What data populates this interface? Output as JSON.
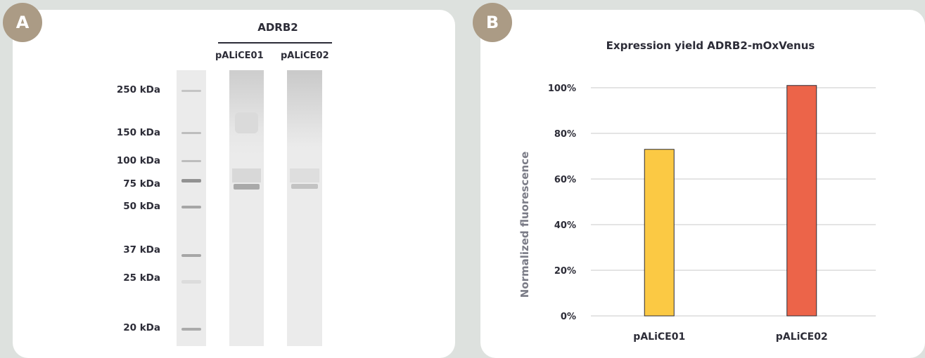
{
  "panels": {
    "a": {
      "badge": "A",
      "gel_title": "ADRB2",
      "lanes": [
        "pALiCE01",
        "pALiCE02"
      ],
      "markers": [
        "250 kDa",
        "150 kDa",
        "100 kDa",
        "75 kDa",
        "50 kDa",
        "37 kDa",
        "25 kDa",
        "20 kDa"
      ]
    },
    "b": {
      "badge": "B"
    }
  },
  "chart_data": {
    "type": "bar",
    "title": "Expression yield ADRB2-mOxVenus",
    "xlabel": "",
    "ylabel": "Normalized fluorescence",
    "categories": [
      "pALiCE01",
      "pALiCE02"
    ],
    "values": [
      73,
      101
    ],
    "ylim": [
      0,
      100
    ],
    "yticks": [
      "0%",
      "20%",
      "40%",
      "60%",
      "80%",
      "100%"
    ],
    "grid": true,
    "colors": [
      "#fbc944",
      "#ec6449"
    ]
  }
}
